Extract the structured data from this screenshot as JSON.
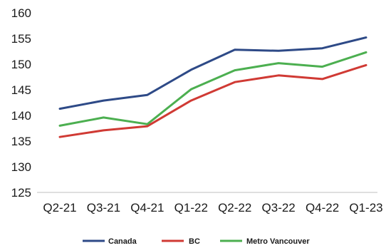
{
  "chart_data": {
    "type": "line",
    "title": "",
    "xlabel": "",
    "ylabel": "",
    "categories": [
      "Q2-21",
      "Q3-21",
      "Q4-21",
      "Q1-22",
      "Q2-22",
      "Q3-22",
      "Q4-22",
      "Q1-23"
    ],
    "ylim": [
      125,
      160
    ],
    "yticks": [
      125,
      130,
      135,
      140,
      145,
      150,
      155,
      160
    ],
    "grid": false,
    "legend_position": "bottom",
    "series": [
      {
        "name": "Canada",
        "color": "#2E4A87",
        "values": [
          141.3,
          142.9,
          144.0,
          148.9,
          152.8,
          152.6,
          153.1,
          155.2
        ]
      },
      {
        "name": "BC",
        "color": "#D03A34",
        "values": [
          135.8,
          137.1,
          137.9,
          142.9,
          146.5,
          147.8,
          147.1,
          149.8
        ]
      },
      {
        "name": "Metro Vancouver",
        "color": "#4CAF50",
        "values": [
          138.0,
          139.6,
          138.3,
          145.1,
          148.8,
          150.2,
          149.5,
          152.3
        ]
      }
    ]
  }
}
